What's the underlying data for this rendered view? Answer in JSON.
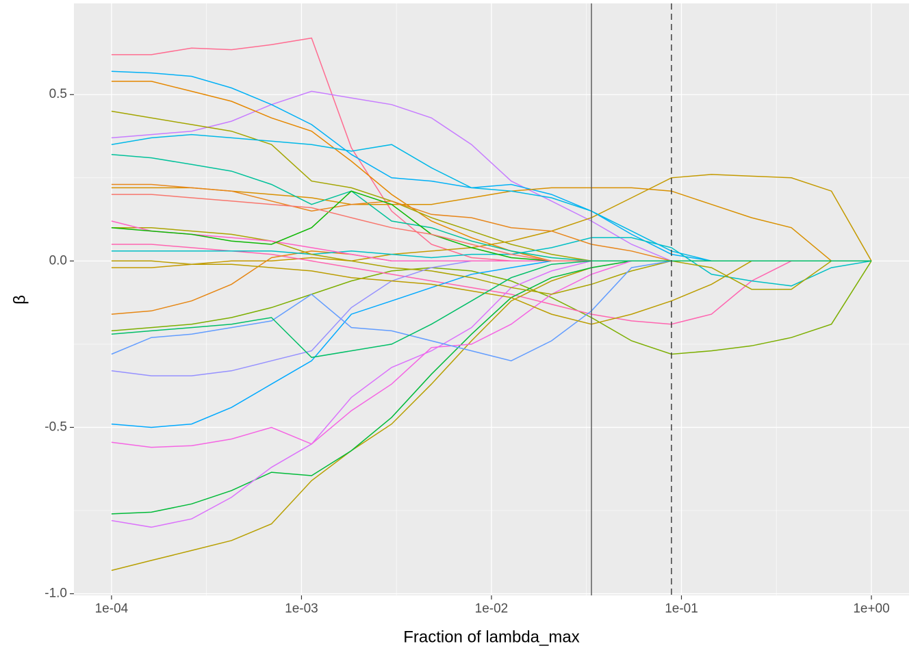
{
  "chart_data": {
    "type": "line",
    "xlabel": "Fraction of lambda_max",
    "ylabel": "β",
    "xscale": "log",
    "grid": true,
    "xlim": [
      6.34e-05,
      1.578
    ],
    "ylim": [
      -1.005,
      0.774
    ],
    "xticks": [
      {
        "value": 0.0001,
        "label": "1e-04"
      },
      {
        "value": 0.001,
        "label": "1e-03"
      },
      {
        "value": 0.01,
        "label": "1e-02"
      },
      {
        "value": 0.1,
        "label": "1e-01"
      },
      {
        "value": 1,
        "label": "1e+00"
      }
    ],
    "yticks": [
      {
        "value": -1,
        "label": "-1.0"
      },
      -0.5,
      {
        "value": 0,
        "label": "0.0"
      },
      0.5
    ],
    "x_minor_breaks": [
      0.000316,
      0.00316,
      0.0316,
      0.316
    ],
    "y_minor_breaks": [
      -0.75,
      -0.25,
      0.25
    ],
    "vlines": [
      {
        "value": 0.0336,
        "style": "solid",
        "color": "#555555"
      },
      {
        "value": 0.0886,
        "style": "dashed",
        "color": "#333333"
      }
    ],
    "x": [
      0.0001,
      0.000162,
      0.000264,
      0.000428,
      0.000695,
      0.00113,
      0.00183,
      0.00298,
      0.00483,
      0.00785,
      0.0127,
      0.0207,
      0.0336,
      0.0546,
      0.0886,
      0.144,
      0.234,
      0.379,
      0.616,
      1
    ],
    "series": [
      {
        "color": "#FF6C91",
        "values": [
          0.62,
          0.62,
          0.64,
          0.635,
          0.65,
          0.67,
          0.34,
          0.15,
          0.05,
          0.01,
          0,
          0,
          0,
          0,
          0,
          0,
          0,
          0,
          0,
          0
        ]
      },
      {
        "color": "#C77CFF",
        "values": [
          0.37,
          0.38,
          0.39,
          0.42,
          0.47,
          0.51,
          0.49,
          0.47,
          0.43,
          0.35,
          0.24,
          0.18,
          0.12,
          0.05,
          0,
          0,
          0,
          0,
          0,
          0
        ]
      },
      {
        "color": "#E58700",
        "values": [
          0.54,
          0.54,
          0.51,
          0.48,
          0.43,
          0.39,
          0.3,
          0.2,
          0.12,
          0.07,
          0.03,
          0,
          0,
          0,
          0,
          0,
          0,
          0,
          0,
          0
        ]
      },
      {
        "color": "#00B0F6",
        "values": [
          0.57,
          0.565,
          0.555,
          0.52,
          0.47,
          0.41,
          0.32,
          0.25,
          0.24,
          0.22,
          0.23,
          0.2,
          0.15,
          0.08,
          0.02,
          0,
          0,
          0,
          0,
          0
        ]
      },
      {
        "color": "#A3A500",
        "values": [
          0.45,
          0.43,
          0.41,
          0.39,
          0.35,
          0.24,
          0.22,
          0.18,
          0.13,
          0.09,
          0.05,
          0.02,
          0,
          0,
          0,
          0,
          0,
          0,
          0,
          0
        ]
      },
      {
        "color": "#C49A00",
        "values": [
          -0.02,
          -0.02,
          -0.01,
          0,
          0,
          0.01,
          0,
          0.02,
          0.03,
          0.04,
          0.06,
          0.09,
          0.13,
          0.19,
          0.25,
          0.26,
          0.255,
          0.25,
          0.21,
          0
        ]
      },
      {
        "color": "#D89000",
        "values": [
          0.22,
          0.22,
          0.22,
          0.21,
          0.2,
          0.19,
          0.17,
          0.17,
          0.17,
          0.19,
          0.21,
          0.22,
          0.22,
          0.22,
          0.21,
          0.17,
          0.13,
          0.1,
          0,
          0
        ]
      },
      {
        "color": "#7CAE00",
        "values": [
          -0.21,
          -0.2,
          -0.19,
          -0.17,
          -0.14,
          -0.1,
          -0.06,
          -0.03,
          -0.02,
          -0.03,
          -0.06,
          -0.11,
          -0.17,
          -0.24,
          -0.28,
          -0.27,
          -0.255,
          -0.23,
          -0.19,
          0
        ]
      },
      {
        "color": "#FF64B0",
        "values": [
          0.05,
          0.05,
          0.04,
          0.03,
          0.02,
          0,
          -0.02,
          -0.04,
          -0.06,
          -0.08,
          -0.1,
          -0.13,
          -0.16,
          -0.18,
          -0.19,
          -0.16,
          -0.06,
          0,
          0,
          0
        ]
      },
      {
        "color": "#B79F00",
        "values": [
          -0.93,
          -0.9,
          -0.87,
          -0.84,
          -0.79,
          -0.66,
          -0.57,
          -0.49,
          -0.37,
          -0.24,
          -0.12,
          -0.06,
          -0.02,
          0,
          0,
          0,
          0,
          0,
          0,
          0
        ]
      },
      {
        "color": "#00BA38",
        "values": [
          -0.76,
          -0.755,
          -0.73,
          -0.69,
          -0.635,
          -0.645,
          -0.57,
          -0.47,
          -0.34,
          -0.22,
          -0.11,
          -0.05,
          -0.02,
          0,
          0,
          0,
          0,
          0,
          0,
          0
        ]
      },
      {
        "color": "#DB72FB",
        "values": [
          -0.78,
          -0.8,
          -0.775,
          -0.71,
          -0.62,
          -0.55,
          -0.41,
          -0.32,
          -0.27,
          -0.2,
          -0.08,
          -0.03,
          0,
          0,
          0,
          0,
          0,
          0,
          0,
          0
        ]
      },
      {
        "color": "#F564E3",
        "values": [
          -0.545,
          -0.56,
          -0.555,
          -0.535,
          -0.5,
          -0.55,
          -0.45,
          -0.37,
          -0.26,
          -0.25,
          -0.19,
          -0.1,
          -0.04,
          0,
          0,
          0,
          0,
          0,
          0,
          0
        ]
      },
      {
        "color": "#00A9FF",
        "values": [
          -0.49,
          -0.5,
          -0.49,
          -0.44,
          -0.37,
          -0.3,
          -0.16,
          -0.12,
          -0.08,
          -0.04,
          -0.02,
          0,
          0,
          0,
          0,
          0,
          0,
          0,
          0,
          0
        ]
      },
      {
        "color": "#E68613",
        "values": [
          -0.16,
          -0.15,
          -0.12,
          -0.07,
          0.01,
          0.03,
          0.02,
          0,
          0,
          0,
          0,
          0,
          0,
          0,
          0,
          0,
          0,
          0,
          0,
          0
        ]
      },
      {
        "color": "#00BFC4",
        "values": [
          0.03,
          0.03,
          0.03,
          0.03,
          0.03,
          0.02,
          0.03,
          0.02,
          0.01,
          0.02,
          0.02,
          0.04,
          0.07,
          0.07,
          0.04,
          -0.04,
          -0.06,
          -0.075,
          -0.02,
          0
        ]
      },
      {
        "color": "#ABA300",
        "values": [
          0.1,
          0.1,
          0.09,
          0.08,
          0.06,
          0.02,
          0,
          -0.02,
          -0.03,
          -0.05,
          -0.08,
          -0.1,
          -0.07,
          -0.03,
          0,
          -0.02,
          -0.085,
          -0.085,
          0,
          0
        ]
      },
      {
        "color": "#00C19A",
        "values": [
          0.32,
          0.31,
          0.29,
          0.27,
          0.23,
          0.17,
          0.21,
          0.12,
          0.1,
          0.06,
          0.03,
          0.01,
          0,
          0,
          0,
          0,
          0,
          0,
          0,
          0
        ]
      },
      {
        "color": "#619CFF",
        "values": [
          -0.28,
          -0.23,
          -0.22,
          -0.2,
          -0.18,
          -0.1,
          -0.2,
          -0.21,
          -0.24,
          -0.27,
          -0.3,
          -0.24,
          -0.15,
          -0.02,
          0,
          0,
          0,
          0,
          0,
          0
        ]
      },
      {
        "color": "#9590FF",
        "values": [
          -0.33,
          -0.345,
          -0.345,
          -0.33,
          -0.3,
          -0.27,
          -0.14,
          -0.06,
          -0.02,
          0,
          0,
          0,
          0,
          0,
          0,
          0,
          0,
          0,
          0,
          0
        ]
      },
      {
        "color": "#FF61C3",
        "values": [
          0.12,
          0.09,
          0.08,
          0.07,
          0.06,
          0.04,
          0.02,
          0,
          0,
          0,
          0,
          0,
          0,
          0,
          0,
          0,
          0,
          0,
          0,
          0
        ]
      },
      {
        "color": "#E7861B",
        "values": [
          0.23,
          0.23,
          0.22,
          0.21,
          0.18,
          0.15,
          0.17,
          0.18,
          0.14,
          0.13,
          0.1,
          0.09,
          0.05,
          0.03,
          0,
          0,
          0,
          0,
          0,
          0
        ]
      },
      {
        "color": "#00B8E7",
        "values": [
          0.35,
          0.37,
          0.38,
          0.37,
          0.36,
          0.35,
          0.33,
          0.35,
          0.28,
          0.22,
          0.21,
          0.19,
          0.15,
          0.09,
          0.03,
          0,
          0,
          0,
          0,
          0
        ]
      },
      {
        "color": "#0CB702",
        "values": [
          0.1,
          0.09,
          0.08,
          0.06,
          0.05,
          0.1,
          0.21,
          0.17,
          0.08,
          0.04,
          0.01,
          0,
          0,
          0,
          0,
          0,
          0,
          0,
          0,
          0
        ]
      },
      {
        "color": "#BB9D00",
        "values": [
          0,
          0,
          -0.01,
          -0.01,
          -0.02,
          -0.03,
          -0.05,
          -0.06,
          -0.07,
          -0.09,
          -0.11,
          -0.16,
          -0.19,
          -0.16,
          -0.12,
          -0.07,
          0,
          0,
          0,
          0
        ]
      },
      {
        "color": "#F8766D",
        "values": [
          0.2,
          0.2,
          0.19,
          0.18,
          0.17,
          0.16,
          0.13,
          0.1,
          0.08,
          0.05,
          0.02,
          0,
          0,
          0,
          0,
          0,
          0,
          0,
          0,
          0
        ]
      },
      {
        "color": "#00BE67",
        "values": [
          -0.22,
          -0.21,
          -0.2,
          -0.19,
          -0.17,
          -0.29,
          -0.27,
          -0.25,
          -0.19,
          -0.12,
          -0.05,
          -0.01,
          0,
          0,
          0,
          0,
          0,
          0,
          0,
          0
        ]
      }
    ]
  }
}
